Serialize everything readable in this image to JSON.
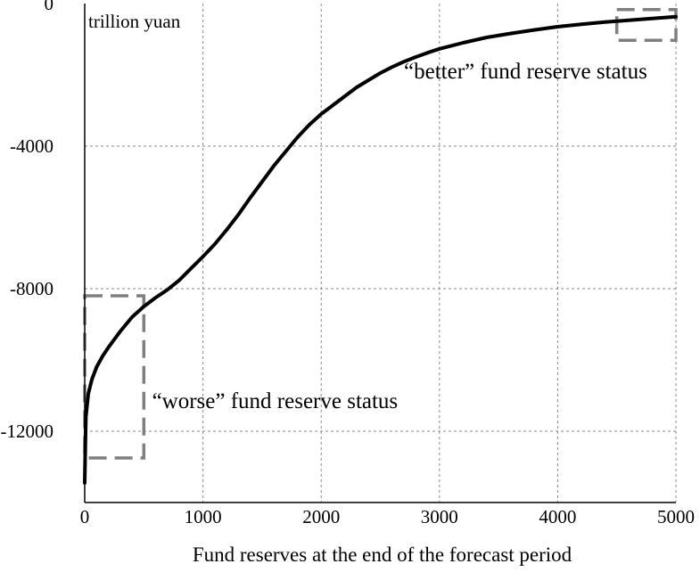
{
  "chart_data": {
    "type": "line",
    "title": "",
    "xlabel": "Fund reserves at the end of the forecast period",
    "ylabel": "trillion yuan",
    "xlim": [
      0,
      5000
    ],
    "ylim": [
      -14000,
      0
    ],
    "x_ticks": [
      0,
      1000,
      2000,
      3000,
      4000,
      5000
    ],
    "y_ticks": [
      0,
      -4000,
      -8000,
      -12000
    ],
    "x_tick_labels": [
      "0",
      "1000",
      "2000",
      "3000",
      "4000",
      "5000"
    ],
    "y_tick_labels": [
      "0",
      "-4000",
      "-8000",
      "-12000"
    ],
    "grid": true,
    "series": [
      {
        "x": [
          0,
          10,
          30,
          60,
          100,
          150,
          200,
          300,
          400,
          500,
          600,
          700,
          800,
          900,
          1000,
          1100,
          1200,
          1300,
          1400,
          1500,
          1600,
          1700,
          1800,
          1900,
          2000,
          2100,
          2200,
          2300,
          2400,
          2500,
          2600,
          2700,
          2800,
          2900,
          3000,
          3200,
          3400,
          3600,
          3800,
          4000,
          4200,
          4400,
          4600,
          4800,
          5000
        ],
        "y": [
          -13450,
          -11600,
          -10950,
          -10550,
          -10200,
          -9900,
          -9650,
          -9200,
          -8800,
          -8500,
          -8250,
          -8030,
          -7760,
          -7430,
          -7100,
          -6750,
          -6350,
          -5920,
          -5450,
          -5000,
          -4550,
          -4150,
          -3750,
          -3400,
          -3100,
          -2850,
          -2600,
          -2350,
          -2150,
          -1950,
          -1780,
          -1630,
          -1500,
          -1380,
          -1270,
          -1100,
          -950,
          -840,
          -740,
          -650,
          -580,
          -520,
          -470,
          -420,
          -370
        ]
      }
    ],
    "annotations": [
      {
        "text": "“better” fund reserve status",
        "x": 2700,
        "y": -2100
      },
      {
        "text": "“worse” fund reserve status",
        "x": 570,
        "y": -11350
      }
    ],
    "highlight_boxes": [
      {
        "x": [
          0,
          500
        ],
        "y": [
          -12750,
          -8200
        ],
        "style": "dashed"
      },
      {
        "x": [
          4500,
          5000
        ],
        "y": [
          -1030,
          -170
        ],
        "style": "dashed"
      }
    ]
  }
}
